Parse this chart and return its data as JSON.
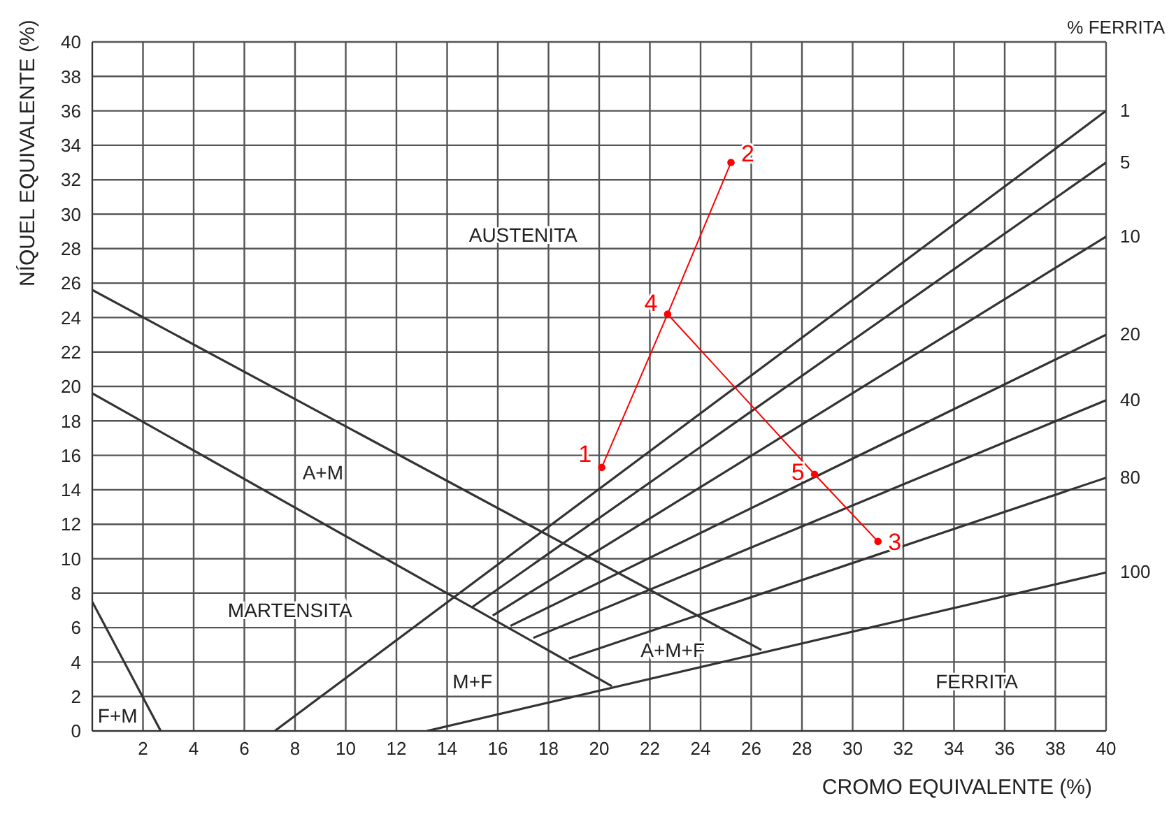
{
  "chart_data": {
    "type": "line",
    "xlabel": "CROMO EQUIVALENTE (%)",
    "ylabel": "NÍQUEL EQUIVALENTE (%)",
    "xlim": [
      0,
      40
    ],
    "ylim": [
      0,
      40
    ],
    "xticks": [
      {
        "value": 0,
        "label": null
      },
      2,
      4,
      6,
      8,
      10,
      12,
      14,
      16,
      18,
      20,
      22,
      24,
      26,
      28,
      30,
      32,
      34,
      36,
      38,
      40
    ],
    "yticks": [
      0,
      2,
      4,
      6,
      8,
      10,
      12,
      14,
      16,
      18,
      20,
      22,
      24,
      26,
      28,
      30,
      32,
      34,
      36,
      38,
      40
    ],
    "grid": true,
    "legend": false,
    "marker": "none",
    "line_style": "solid",
    "series": [
      {
        "name": "1",
        "color": "#333333",
        "x": [
          7.2,
          40
        ],
        "values": [
          0,
          36
        ]
      },
      {
        "name": "5",
        "color": "#333333",
        "x": [
          15.0,
          40
        ],
        "values": [
          7.2,
          33
        ]
      },
      {
        "name": "10",
        "color": "#333333",
        "x": [
          15.8,
          40
        ],
        "values": [
          6.7,
          28.7
        ]
      },
      {
        "name": "20",
        "color": "#333333",
        "x": [
          16.5,
          40
        ],
        "values": [
          6.1,
          23.0
        ]
      },
      {
        "name": "40",
        "color": "#333333",
        "x": [
          17.4,
          40
        ],
        "values": [
          5.4,
          19.2
        ]
      },
      {
        "name": "80",
        "color": "#333333",
        "x": [
          18.8,
          40
        ],
        "values": [
          4.2,
          14.7
        ]
      },
      {
        "name": "100",
        "color": "#333333",
        "x": [
          13.2,
          40
        ],
        "values": [
          0,
          9.2
        ]
      },
      {
        "color": "#333333",
        "x": [
          0,
          26.4
        ],
        "values": [
          25.6,
          4.7
        ]
      },
      {
        "color": "#333333",
        "x": [
          0,
          20.5
        ],
        "values": [
          19.6,
          2.6
        ]
      },
      {
        "color": "#333333",
        "x": [
          0,
          2.7
        ],
        "values": [
          7.5,
          0
        ]
      },
      {
        "color": "#ff0000",
        "x": [
          20.1,
          22.7,
          25.2
        ],
        "values": [
          15.3,
          24.2,
          33.0
        ]
      },
      {
        "color": "#ff0000",
        "x": [
          22.7,
          28.5,
          31.0
        ],
        "values": [
          24.2,
          14.9,
          11.0
        ]
      },
      {
        "type": "scatter",
        "marker": "circle",
        "color": "#ff0000",
        "x": [
          20.1,
          25.2,
          31.0,
          22.7,
          28.5
        ],
        "values": [
          15.3,
          33.0,
          11.0,
          24.2,
          14.9
        ]
      }
    ],
    "annotations": [
      "% FERRITA",
      "AUSTENITA",
      "A+M",
      "MARTENSITA",
      "M+F",
      "A+M+F",
      "FERRITA",
      "F+M",
      {
        "text": "1",
        "x": 20.1,
        "y": 15.3
      },
      {
        "text": "2",
        "x": 25.2,
        "y": 33.0
      },
      {
        "text": "3",
        "x": 31.0,
        "y": 11.0
      },
      {
        "text": "4",
        "x": 22.7,
        "y": 24.2
      },
      {
        "text": "5",
        "x": 28.5,
        "y": 14.9
      }
    ]
  }
}
